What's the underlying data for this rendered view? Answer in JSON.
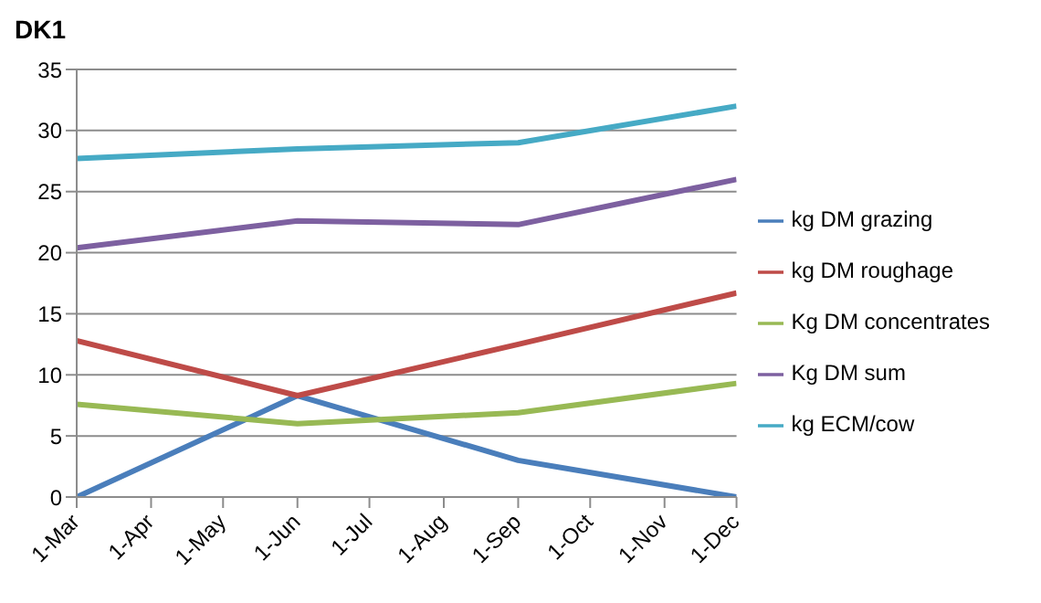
{
  "chart_data": {
    "type": "line",
    "title": "DK1",
    "x": [
      "--03-01",
      "--06-01",
      "--09-01",
      "--12-01"
    ],
    "series": [
      {
        "name": "kg DM grazing",
        "color": "#4a7ebb",
        "values": [
          0,
          8.3,
          3,
          0
        ]
      },
      {
        "name": "kg  DM roughage",
        "color": "#be4b48",
        "values": [
          12.8,
          8.3,
          12.5,
          16.7
        ]
      },
      {
        "name": "Kg DM concentrates",
        "color": "#98b954",
        "values": [
          7.6,
          6,
          6.9,
          9.3
        ]
      },
      {
        "name": "Kg DM sum",
        "color": "#7d60a0",
        "values": [
          20.4,
          22.6,
          22.3,
          26
        ]
      },
      {
        "name": "kg ECM/cow",
        "color": "#46aac5",
        "values": [
          27.7,
          28.5,
          29,
          32
        ]
      }
    ],
    "xlim": [
      "--03-01",
      "--12-01"
    ],
    "xticks": [
      {
        "value": "--03-01",
        "label": "1-Mar"
      },
      {
        "value": "--04-01",
        "label": "1-Apr"
      },
      {
        "value": "--05-01",
        "label": "1-May"
      },
      {
        "value": "--06-01",
        "label": "1-Jun"
      },
      {
        "value": "--07-01",
        "label": "1-Jul"
      },
      {
        "value": "--08-01",
        "label": "1-Aug"
      },
      {
        "value": "--09-01",
        "label": "1-Sep"
      },
      {
        "value": "--10-01",
        "label": "1-Oct"
      },
      {
        "value": "--11-01",
        "label": "1-Nov"
      },
      {
        "value": "--12-01",
        "label": "1-Dec"
      }
    ],
    "ylim": [
      0,
      35
    ],
    "yticks": [
      0,
      5,
      10,
      15,
      20,
      25,
      30,
      35
    ],
    "grid": "y",
    "legend": "right",
    "marker": "none",
    "line_style": "solid"
  }
}
